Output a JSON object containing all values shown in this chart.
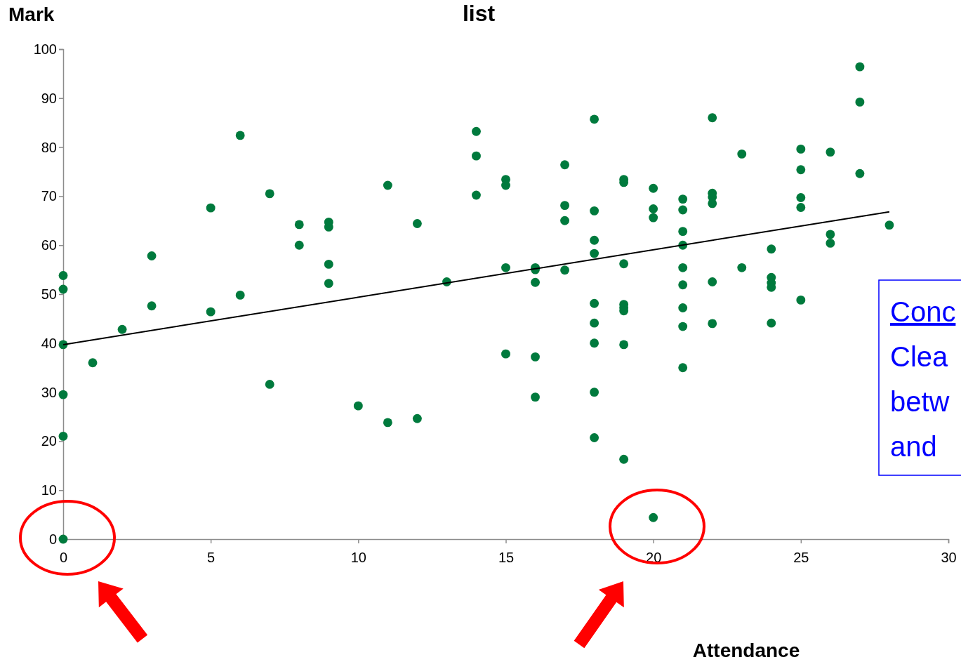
{
  "chart_data": {
    "type": "scatter",
    "title": "list",
    "xlabel": "Attendance",
    "ylabel": "Mark",
    "xlim": [
      0,
      30
    ],
    "xticks": [
      0,
      5,
      10,
      15,
      20,
      25,
      30
    ],
    "ylim": [
      0,
      100
    ],
    "yticks": [
      0,
      10,
      20,
      30,
      40,
      50,
      60,
      70,
      80,
      90,
      100
    ],
    "grid": false,
    "annotations": [
      "Conc",
      "Clea",
      "betw",
      "and"
    ],
    "series": [
      {
        "marker": "circle",
        "color": "#007a3d",
        "x": [
          0,
          0,
          0,
          0,
          0,
          0,
          1,
          2,
          3,
          3,
          5,
          5,
          6,
          6,
          7,
          7,
          8,
          8,
          9,
          9,
          9,
          9,
          10,
          11,
          11,
          12,
          12,
          13,
          14,
          14,
          14,
          15,
          15,
          15,
          15,
          16,
          16,
          16,
          16,
          16,
          17,
          17,
          17,
          17,
          18,
          18,
          18,
          18,
          18,
          18,
          18,
          18,
          18,
          19,
          19,
          19,
          19,
          19,
          19,
          19,
          19,
          20,
          20,
          20,
          20,
          21,
          21,
          21,
          21,
          21,
          21,
          21,
          21,
          21,
          22,
          22,
          22,
          22,
          22,
          22,
          23,
          23,
          24,
          24,
          24,
          24,
          24,
          25,
          25,
          25,
          25,
          25,
          26,
          26,
          26,
          27,
          27,
          27,
          28
        ],
        "values": [
          53.8,
          51,
          39.7,
          29.5,
          21,
          0,
          36,
          42.8,
          57.8,
          47.6,
          67.6,
          46.4,
          82.4,
          49.8,
          70.5,
          31.6,
          64.2,
          60,
          64.7,
          63.7,
          56.1,
          52.2,
          27.2,
          72.2,
          23.8,
          64.4,
          24.6,
          52.5,
          83.2,
          78.2,
          70.2,
          73.4,
          72.2,
          55.4,
          37.8,
          55.4,
          55,
          52.4,
          37.2,
          29,
          76.4,
          68.1,
          65,
          54.9,
          85.7,
          67,
          61,
          58.3,
          48.1,
          44.1,
          40,
          30,
          20.7,
          73.4,
          72.8,
          56.2,
          47.9,
          47.2,
          46.6,
          39.7,
          16.3,
          71.6,
          67.4,
          65.6,
          4.4,
          69.4,
          67.2,
          62.8,
          60,
          55.4,
          51.9,
          47.2,
          43.4,
          35,
          86,
          70.6,
          69.8,
          68.5,
          52.5,
          44,
          78.6,
          55.4,
          59.2,
          53.4,
          52.3,
          51.4,
          44.1,
          79.6,
          75.4,
          69.7,
          67.7,
          48.8,
          79,
          62.2,
          60.4,
          96.4,
          89.2,
          74.6,
          64.1
        ]
      },
      {
        "type": "line",
        "color": "#000000",
        "line_style": "solid",
        "x": [
          0,
          28
        ],
        "values": [
          39.7,
          66.8
        ]
      }
    ]
  }
}
